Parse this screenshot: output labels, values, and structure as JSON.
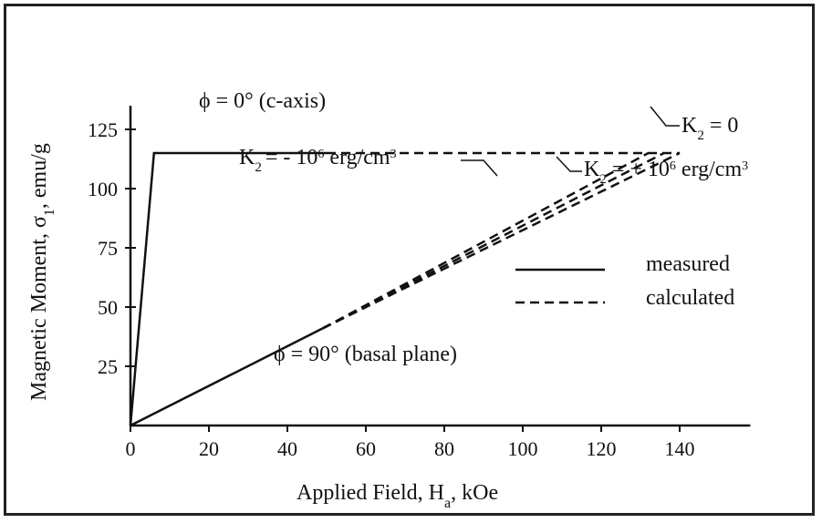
{
  "chart_data": {
    "type": "line",
    "xlabel": "Applied Field, H",
    "xlabel_sub": "a",
    "xlabel_tail": ", kOe",
    "ylabel": "Magnetic Moment, σ",
    "ylabel_sub": "1",
    "ylabel_tail": ", emu/g",
    "xlim": [
      0,
      158
    ],
    "ylim": [
      0,
      135
    ],
    "x_ticks": [
      0,
      20,
      40,
      60,
      80,
      100,
      120,
      140
    ],
    "y_ticks": [
      25,
      50,
      75,
      100,
      125
    ],
    "x_tick_labels": [
      "0",
      "20",
      "40",
      "60",
      "80",
      "100",
      "120",
      "140"
    ],
    "y_tick_labels": [
      "25",
      "50",
      "75",
      "100",
      "125"
    ],
    "legend": {
      "position": "right",
      "entries": [
        {
          "label": "measured",
          "style": "solid"
        },
        {
          "label": "calculated",
          "style": "dashed"
        }
      ]
    },
    "series": [
      {
        "style": "solid",
        "points": [
          [
            0,
            0
          ],
          [
            6,
            115
          ],
          [
            50,
            115
          ]
        ]
      },
      {
        "style": "dashed",
        "points": [
          [
            50,
            115
          ],
          [
            140,
            115
          ]
        ]
      },
      {
        "style": "solid",
        "points": [
          [
            0,
            0
          ],
          [
            49,
            41
          ]
        ]
      },
      {
        "style": "dashed",
        "points": [
          [
            49,
            41
          ],
          [
            132,
            115
          ]
        ]
      },
      {
        "style": "dashed",
        "points": [
          [
            49,
            41
          ],
          [
            136,
            115
          ]
        ]
      },
      {
        "style": "dashed",
        "points": [
          [
            49,
            41
          ],
          [
            140,
            115
          ]
        ]
      }
    ],
    "annotations": {
      "c_axis": {
        "phi": "ϕ",
        "text": " = 0° (c-axis)"
      },
      "basal": {
        "phi": "ϕ",
        "text": " = 90° (basal plane)"
      },
      "k2_neg": {
        "k": "K",
        "sub": "2",
        "pre": "= - 10",
        "sup": "6",
        "post": " erg/cm",
        "sup2": "3"
      },
      "k2_zero": {
        "k": "K",
        "sub": "2",
        "text": " = 0"
      },
      "k2_pos": {
        "k": "K",
        "sub": "2",
        "pre": " = + 10",
        "sup": "6",
        "post": " erg/cm",
        "sup2": "3"
      }
    }
  }
}
